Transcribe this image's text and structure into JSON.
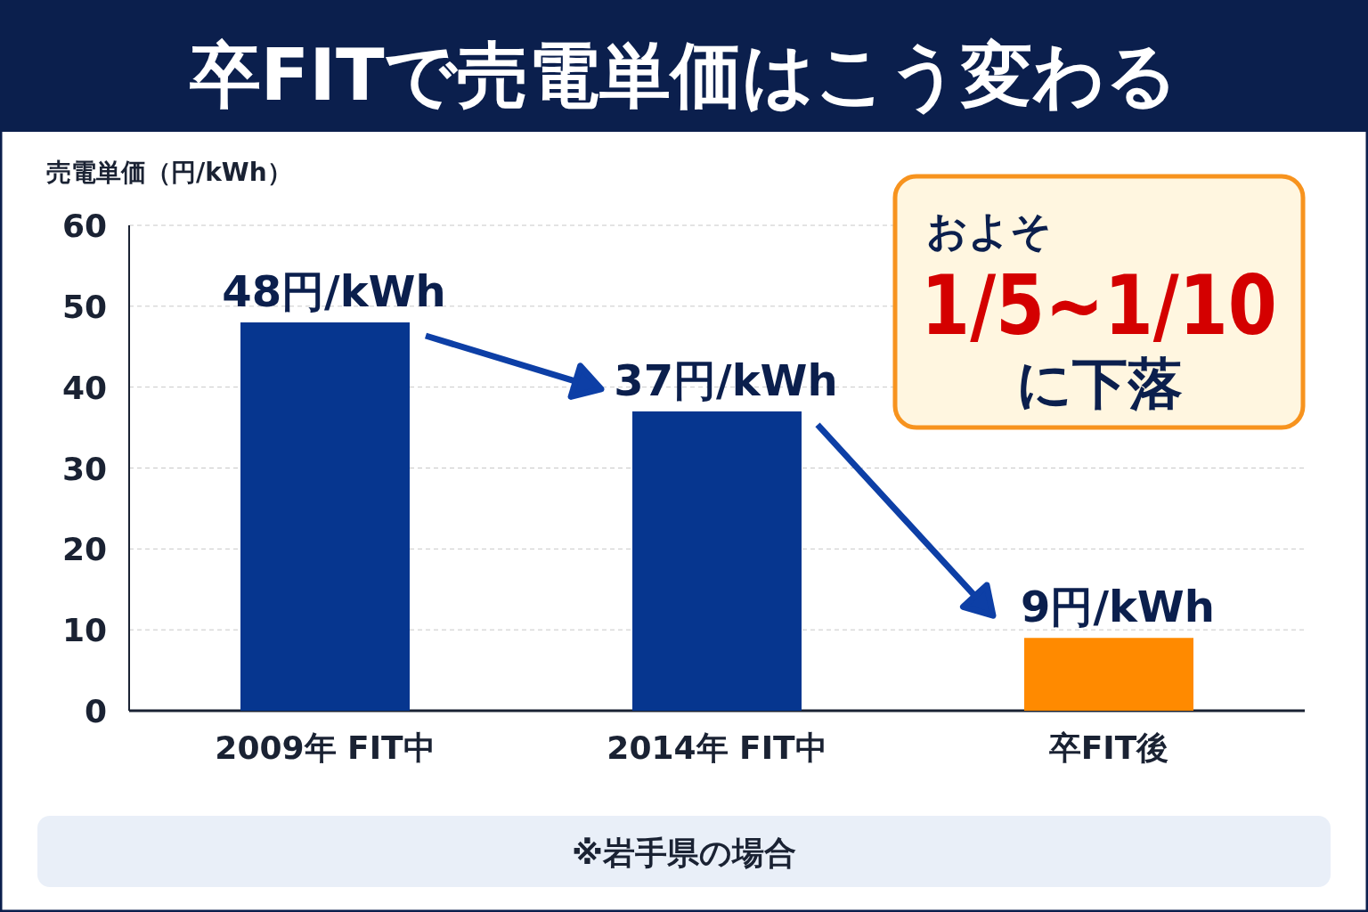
{
  "chart_data": {
    "type": "bar",
    "title": "卒FITで売電単価はこう変わる",
    "ylabel": "売電単価（円/kWh）",
    "categories": [
      "2009年 FIT中",
      "2014年 FIT中",
      "卒FIT後"
    ],
    "values": [
      48,
      37,
      9
    ],
    "colors": [
      "#06368f",
      "#06368f",
      "#ff8a00"
    ],
    "value_labels": [
      "48円/kWh",
      "37円/kWh",
      "9円/kWh"
    ],
    "ylim": [
      0,
      60
    ],
    "yticks": [
      0,
      10,
      20,
      30,
      40,
      50,
      60
    ],
    "grid": "y",
    "annotations": [
      "およそ",
      "1/5~1/10",
      "に下落",
      "※岩手県の場合"
    ]
  }
}
